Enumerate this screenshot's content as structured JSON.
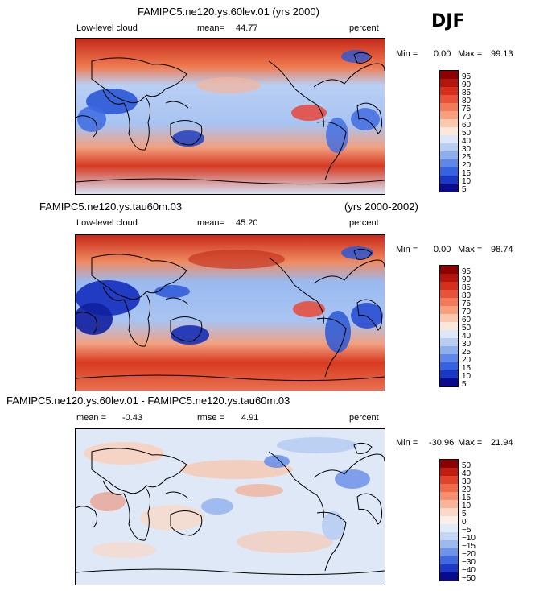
{
  "season": "DJF",
  "colors": {
    "dark_red": "#8b0000",
    "red": "#d7301f",
    "orange_red": "#f06a3f",
    "light_orange": "#f7a07a",
    "pale": "#fce4d6",
    "white": "#f2f2f2",
    "light_blue": "#c6d9f5",
    "mid_blue": "#7fa6ec",
    "blue": "#2e5fe0",
    "dark_blue": "#0a0a8c"
  },
  "panels": [
    {
      "title": "FAMIPC5.ne120.ys.60lev.01 (yrs 2000)",
      "title_right": "",
      "field": "Low-level cloud",
      "mean_label": "mean=",
      "mean_value": "44.77",
      "rmse_label": "",
      "rmse_value": "",
      "units": "percent",
      "min_label": "Min =",
      "min_value": "0.00",
      "max_label": "Max =",
      "max_value": "99.13",
      "colorbar_labels": [
        "95",
        "90",
        "85",
        "80",
        "75",
        "70",
        "60",
        "50",
        "40",
        "30",
        "25",
        "20",
        "15",
        "10",
        "5"
      ]
    },
    {
      "title": "FAMIPC5.ne120.ys.tau60m.03",
      "title_right": "(yrs 2000-2002)",
      "field": "Low-level cloud",
      "mean_label": "mean=",
      "mean_value": "45.20",
      "rmse_label": "",
      "rmse_value": "",
      "units": "percent",
      "min_label": "Min =",
      "min_value": "0.00",
      "max_label": "Max =",
      "max_value": "98.74",
      "colorbar_labels": [
        "95",
        "90",
        "85",
        "80",
        "75",
        "70",
        "60",
        "50",
        "40",
        "30",
        "25",
        "20",
        "15",
        "10",
        "5"
      ]
    },
    {
      "title": "FAMIPC5.ne120.ys.60lev.01 - FAMIPC5.ne120.ys.tau60m.03",
      "title_right": "",
      "field": "",
      "mean_label": "mean =",
      "mean_value": "-0.43",
      "rmse_label": "rmse =",
      "rmse_value": "4.91",
      "units": "percent",
      "min_label": "Min =",
      "min_value": "-30.96",
      "max_label": "Max =",
      "max_value": "21.94",
      "colorbar_labels": [
        "50",
        "40",
        "30",
        "20",
        "15",
        "10",
        "5",
        "0",
        "−5",
        "−10",
        "−15",
        "−20",
        "−30",
        "−40",
        "−50"
      ]
    }
  ],
  "chart_data": [
    {
      "type": "heatmap",
      "title": "FAMIPC5.ne120.ys.60lev.01 (yrs 2000)",
      "variable": "Low-level cloud",
      "units": "percent",
      "mean": 44.77,
      "min": 0.0,
      "max": 99.13,
      "contour_levels": [
        5,
        10,
        15,
        20,
        25,
        30,
        40,
        50,
        60,
        70,
        75,
        80,
        85,
        90,
        95
      ]
    },
    {
      "type": "heatmap",
      "title": "FAMIPC5.ne120.ys.tau60m.03 (yrs 2000-2002)",
      "variable": "Low-level cloud",
      "units": "percent",
      "mean": 45.2,
      "min": 0.0,
      "max": 98.74,
      "contour_levels": [
        5,
        10,
        15,
        20,
        25,
        30,
        40,
        50,
        60,
        70,
        75,
        80,
        85,
        90,
        95
      ]
    },
    {
      "type": "heatmap",
      "title": "FAMIPC5.ne120.ys.60lev.01 - FAMIPC5.ne120.ys.tau60m.03",
      "units": "percent",
      "mean": -0.43,
      "rmse": 4.91,
      "min": -30.96,
      "max": 21.94,
      "contour_levels": [
        -50,
        -40,
        -30,
        -20,
        -15,
        -10,
        -5,
        0,
        5,
        10,
        15,
        20,
        30,
        40,
        50
      ]
    }
  ]
}
